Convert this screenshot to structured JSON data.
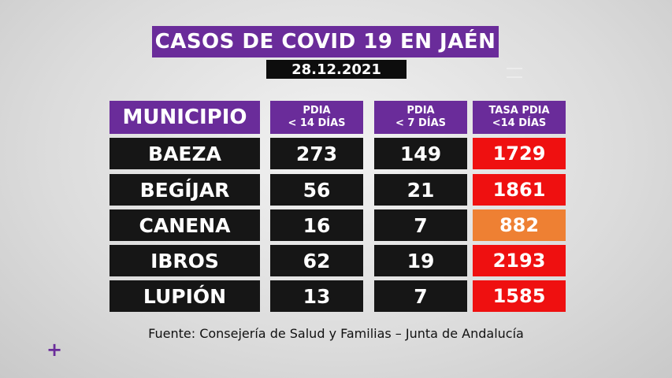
{
  "title": "CASOS DE COVID 19 EN JAÉN",
  "date": "28.12.2021",
  "headers": {
    "municipio": "MUNICIPIO",
    "pdia14_line1": "PDIA",
    "pdia14_line2": "< 14 DÍAS",
    "pdia7_line1": "PDIA",
    "pdia7_line2": "< 7 DÍAS",
    "tasa_line1": "TASA PDIA",
    "tasa_line2": "<14 DÍAS"
  },
  "rows": [
    {
      "municipio": "BAEZA",
      "pdia14": "273",
      "pdia7": "149",
      "tasa": "1729",
      "tasa_color": "#ef1010"
    },
    {
      "municipio": "BEGÍJAR",
      "pdia14": "56",
      "pdia7": "21",
      "tasa": "1861",
      "tasa_color": "#ef1010"
    },
    {
      "municipio": "CANENA",
      "pdia14": "16",
      "pdia7": "7",
      "tasa": "882",
      "tasa_color": "#ee8033"
    },
    {
      "municipio": "IBROS",
      "pdia14": "62",
      "pdia7": "19",
      "tasa": "2193",
      "tasa_color": "#ef1010"
    },
    {
      "municipio": "LUPIÓN",
      "pdia14": "13",
      "pdia7": "7",
      "tasa": "1585",
      "tasa_color": "#ef1010"
    }
  ],
  "source": "Fuente: Consejería de Salud y Familias – Junta de Andalucía",
  "corner_mark": "+",
  "colors": {
    "purple": "#6a2c9a",
    "dark": "#161616",
    "red": "#ef1010",
    "orange": "#ee8033"
  }
}
